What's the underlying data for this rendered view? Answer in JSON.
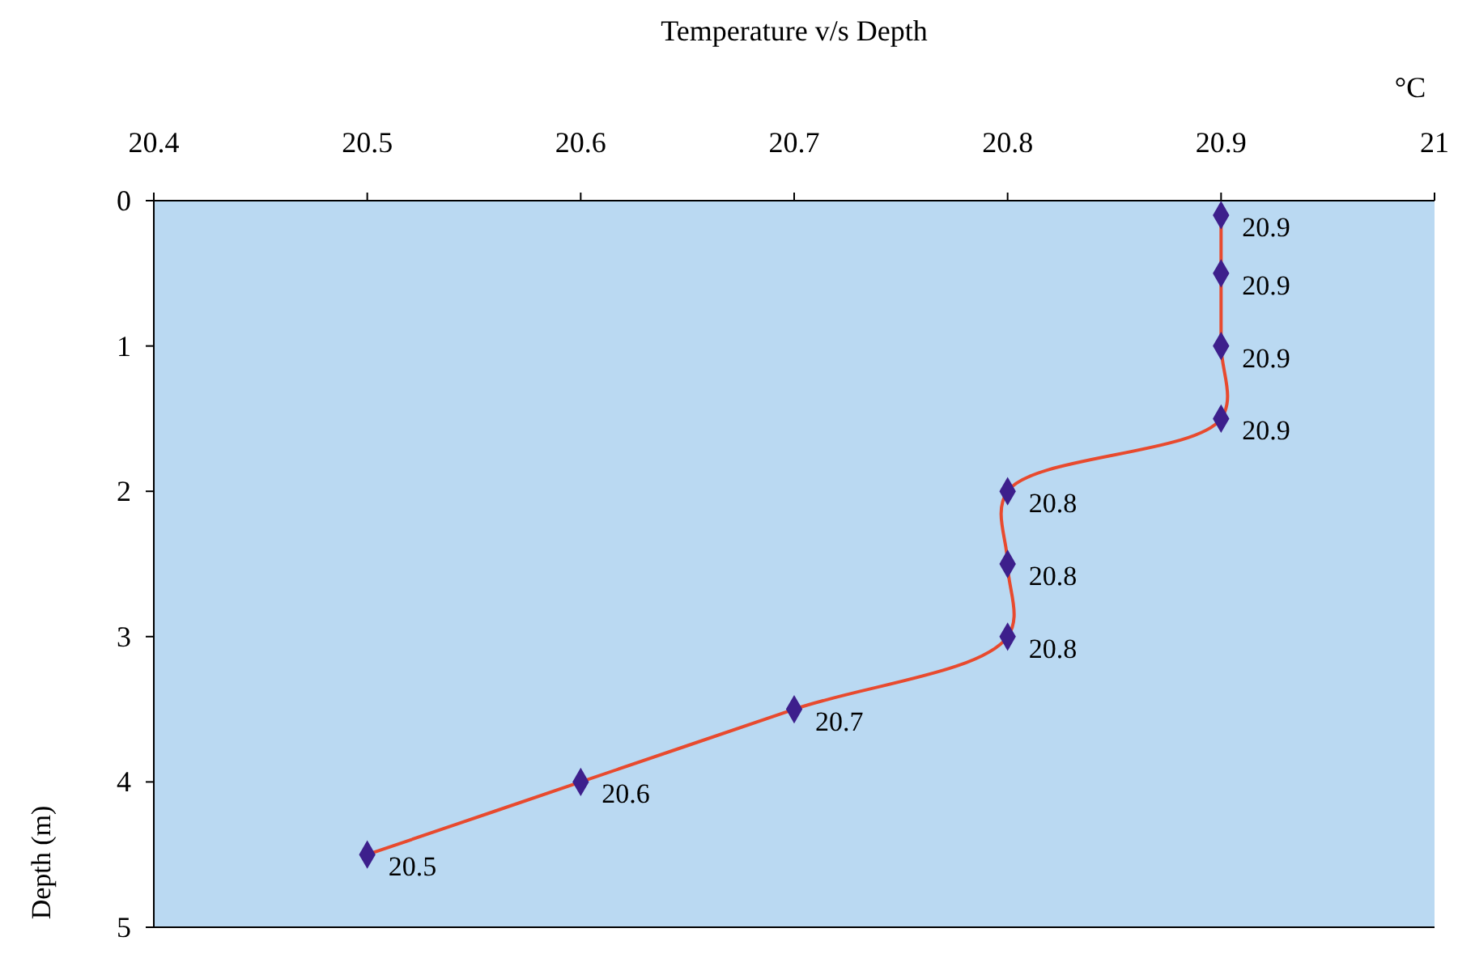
{
  "chart_data": {
    "type": "line",
    "orientation": "horizontal",
    "title": "Temperature v/s Depth",
    "xlabel": "°C",
    "ylabel": "Depth (m)",
    "x": [
      0.1,
      0.5,
      1.0,
      1.5,
      2.0,
      2.5,
      3.0,
      3.5,
      4.0,
      4.5
    ],
    "series": [
      {
        "color": "#e84a2e",
        "values": [
          20.9,
          20.9,
          20.9,
          20.9,
          20.8,
          20.8,
          20.8,
          20.7,
          20.6,
          20.5
        ]
      }
    ],
    "data_labels": true,
    "xlim": [
      20.4,
      21
    ],
    "xticks": [
      20.4,
      20.5,
      20.6,
      20.7,
      20.8,
      20.9,
      21
    ],
    "ylim": [
      5,
      0
    ],
    "yticks": [
      0,
      1,
      2,
      3,
      4,
      5
    ],
    "marker": "diamond",
    "line_style": "solid",
    "grid": false
  }
}
